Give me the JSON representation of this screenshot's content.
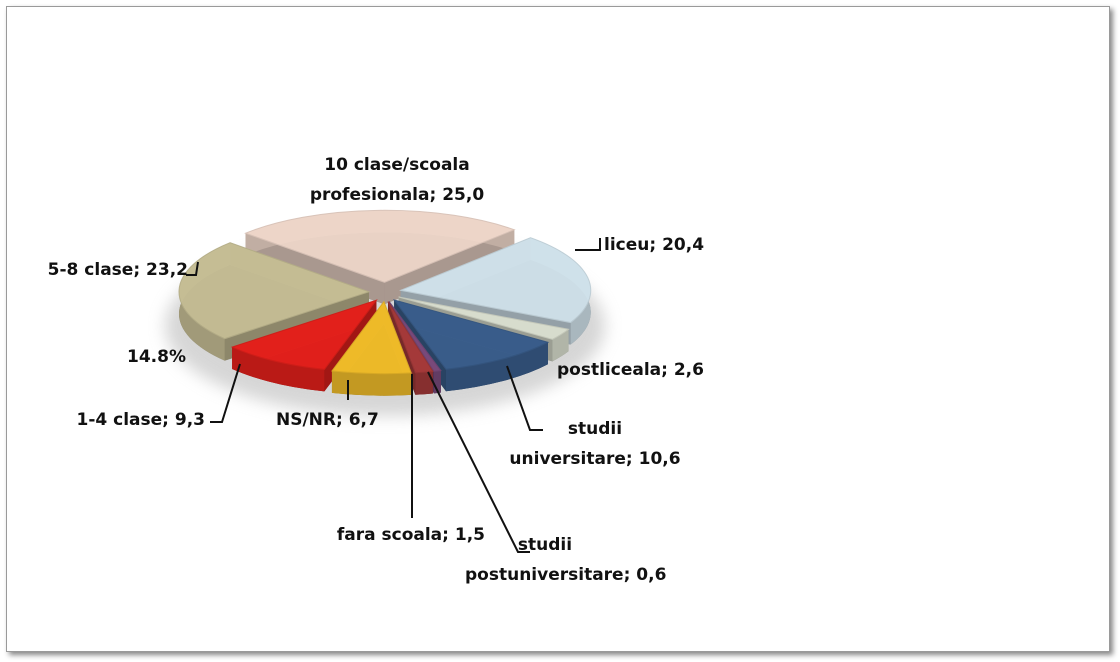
{
  "chart_data": {
    "type": "pie3d",
    "categories": [
      "10 clase/scoala profesionala",
      "liceu",
      "postliceala",
      "studii universitare",
      "studii postuniversitare",
      "fara scoala",
      "NS/NR",
      "1-4 clase",
      "5-8 clase"
    ],
    "values": [
      25.0,
      20.4,
      2.6,
      10.6,
      0.6,
      1.5,
      6.7,
      9.3,
      23.2
    ],
    "value_labels": [
      "25,0",
      "20,4",
      "2,6",
      "10,6",
      "0,6",
      "1,5",
      "6,7",
      "9,3",
      "23,2"
    ],
    "label_separator": "; ",
    "colors": [
      "#f1d9cc",
      "#d3e5ee",
      "#dde2d2",
      "#3b5f8e",
      "#7b4b7d",
      "#a83b3b",
      "#f4bf2a",
      "#e8211c",
      "#c9c197"
    ],
    "annotations": [
      "14.8%"
    ]
  }
}
